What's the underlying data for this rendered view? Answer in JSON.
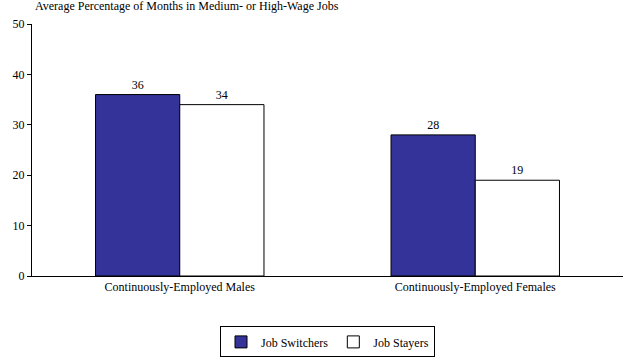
{
  "chart_data": {
    "type": "bar",
    "title": "Average Percentage of Months in Medium- or High-Wage Jobs",
    "categories": [
      "Continuously-Employed Males",
      "Continuously-Employed Females"
    ],
    "series": [
      {
        "name": "Job Switchers",
        "color": "#333399",
        "values": [
          36,
          28
        ]
      },
      {
        "name": "Job Stayers",
        "color": "#ffffff",
        "values": [
          34,
          19
        ]
      }
    ],
    "ylim": [
      0,
      50
    ],
    "yticks": [
      0,
      10,
      20,
      30,
      40,
      50
    ],
    "grid": false,
    "legend": "bottom",
    "data_labels": true
  }
}
